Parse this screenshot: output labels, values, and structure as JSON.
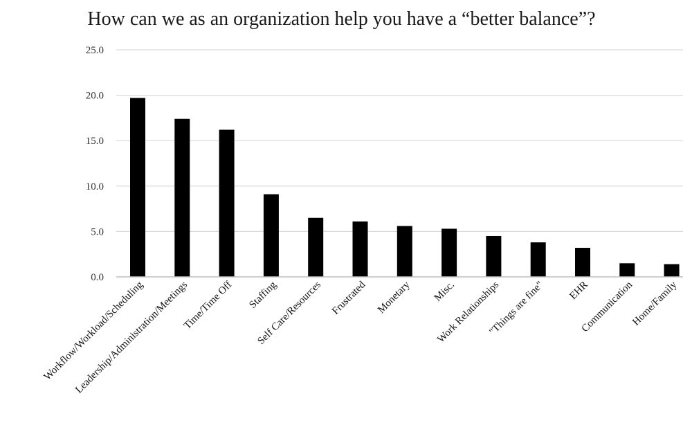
{
  "chart_data": {
    "type": "bar",
    "title": "How can we as an organization help you have a “better balance”?",
    "xlabel": "",
    "ylabel": "",
    "categories": [
      "Workflow/Workload/Scheduling",
      "Leadership/Administration/Meetings",
      "Time/Time Off",
      "Staffing",
      "Self Care/Resources",
      "Frustrated",
      "Monetary",
      "Misc.",
      "Work Relationships",
      "\"Things are fine\"",
      "EHR",
      "Communication",
      "Home/Family"
    ],
    "values": [
      19.7,
      17.4,
      16.2,
      9.1,
      6.5,
      6.1,
      5.6,
      5.3,
      4.5,
      3.8,
      3.2,
      1.5,
      1.4
    ],
    "ylim": [
      0,
      25
    ],
    "yticks": [
      "0.0",
      "5.0",
      "10.0",
      "15.0",
      "20.0",
      "25.0"
    ],
    "ytick_values": [
      0,
      5,
      10,
      15,
      20,
      25
    ],
    "grid": true,
    "legend": "none",
    "colors": {
      "bar": "#000000",
      "grid": "#d9d9d9",
      "axis": "#bfbfbf"
    }
  }
}
